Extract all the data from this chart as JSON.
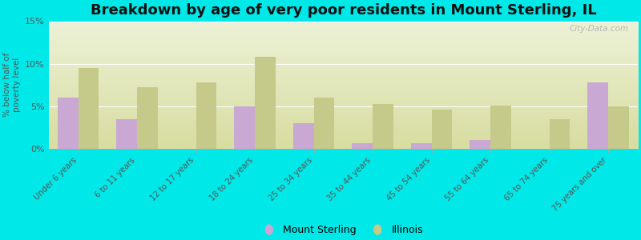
{
  "title": "Breakdown by age of very poor residents in Mount Sterling, IL",
  "ylabel": "% below half of\npoverty level",
  "categories": [
    "Under 6 years",
    "6 to 11 years",
    "12 to 17 years",
    "18 to 24 years",
    "25 to 34 years",
    "35 to 44 years",
    "45 to 54 years",
    "55 to 64 years",
    "65 to 74 years",
    "75 years and over"
  ],
  "mount_sterling": [
    6.0,
    3.5,
    0.0,
    5.0,
    3.0,
    0.7,
    0.7,
    1.0,
    0.0,
    7.8
  ],
  "illinois": [
    9.5,
    7.2,
    7.8,
    10.8,
    6.0,
    5.3,
    4.6,
    5.1,
    3.5,
    5.0
  ],
  "mount_sterling_color": "#c9a8d4",
  "illinois_color": "#c5c98a",
  "background_outer": "#00e8e8",
  "background_plot_bottom": "#d8dda0",
  "background_plot_top": "#edf2d8",
  "ylim": [
    0,
    15
  ],
  "yticks": [
    0,
    5,
    10,
    15
  ],
  "ytick_labels": [
    "0%",
    "5%",
    "10%",
    "15%"
  ],
  "bar_width": 0.35,
  "title_fontsize": 13,
  "legend_labels": [
    "Mount Sterling",
    "Illinois"
  ],
  "watermark": "City-Data.com"
}
